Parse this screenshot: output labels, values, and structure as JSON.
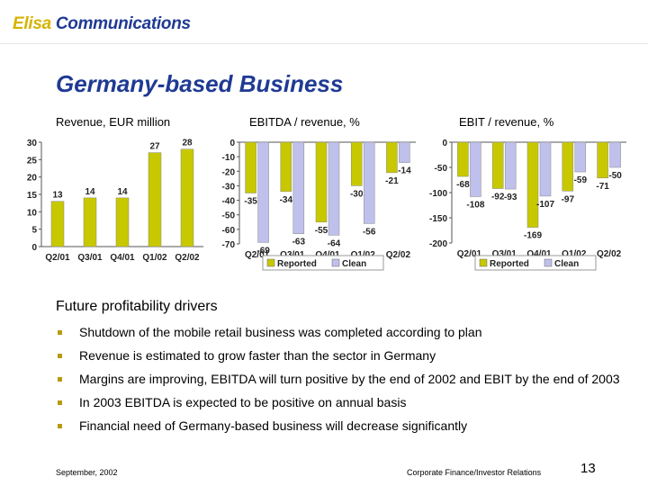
{
  "header": {
    "logo_brand": "Elisa",
    "logo_rest": " Communications",
    "title": "Germany-based Business"
  },
  "colors": {
    "title": "#1f3a93",
    "reported": "#c8c800",
    "clean": "#c0c0ec",
    "bullet": "#b89a10"
  },
  "chart_data": [
    {
      "type": "bar",
      "title": "Revenue, EUR million",
      "categories": [
        "Q2/01",
        "Q3/01",
        "Q4/01",
        "Q1/02",
        "Q2/02"
      ],
      "series": [
        {
          "values": [
            13,
            14,
            14,
            27,
            28
          ]
        }
      ],
      "ylim": [
        0,
        30
      ],
      "yticks": [
        0,
        5,
        10,
        15,
        20,
        25,
        30
      ],
      "grid": false
    },
    {
      "type": "bar",
      "title": "EBITDA / revenue, %",
      "categories": [
        "Q2/01",
        "Q3/01",
        "Q4/01",
        "Q1/02",
        "Q2/02"
      ],
      "series": [
        {
          "name": "Reported",
          "values": [
            -35,
            -34,
            -55,
            -30,
            -21
          ]
        },
        {
          "name": "Clean",
          "values": [
            -69,
            -63,
            -64,
            -56,
            -14
          ]
        }
      ],
      "ylim": [
        -70,
        0
      ],
      "yticks": [
        0,
        -10,
        -20,
        -30,
        -40,
        -50,
        -60,
        -70
      ],
      "legend": "bottom",
      "grid": false
    },
    {
      "type": "bar",
      "title": "EBIT / revenue, %",
      "categories": [
        "Q2/01",
        "Q3/01",
        "Q4/01",
        "Q1/02",
        "Q2/02"
      ],
      "series": [
        {
          "name": "Reported",
          "values": [
            -68,
            -92,
            -169,
            -97,
            -71
          ]
        },
        {
          "name": "Clean",
          "values": [
            -108,
            -93,
            -107,
            -59,
            -50
          ]
        }
      ],
      "ylim": [
        -200,
        0
      ],
      "yticks": [
        0,
        -50,
        -100,
        -150,
        -200
      ],
      "legend": "bottom",
      "grid": false
    }
  ],
  "drivers": {
    "heading": "Future profitability drivers",
    "items": [
      "Shutdown of the mobile retail business was completed according to plan",
      "Revenue is estimated to grow faster than the sector in Germany",
      "Margins are improving, EBITDA will turn positive by the end of 2002 and EBIT by the end of 2003",
      "In 2003 EBITDA is expected to be positive on annual basis",
      "Financial need of Germany-based business will decrease significantly"
    ]
  },
  "footer": {
    "date": "September, 2002",
    "department": "Corporate Finance/Investor Relations",
    "page": "13"
  }
}
